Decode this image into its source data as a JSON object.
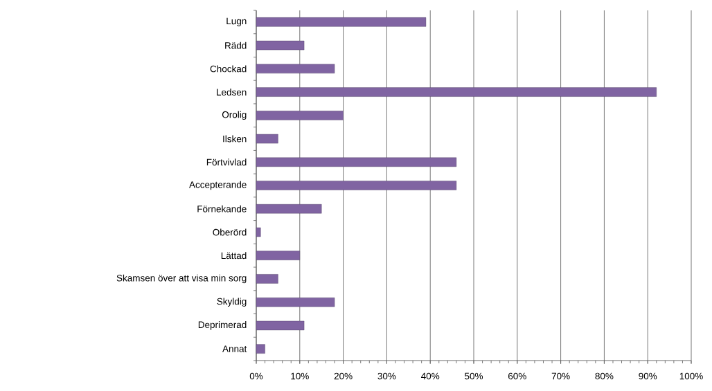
{
  "chart_data": {
    "type": "bar",
    "orientation": "horizontal",
    "categories": [
      "Lugn",
      "Rädd",
      "Chockad",
      "Ledsen",
      "Orolig",
      "Ilsken",
      "Förtvivlad",
      "Accepterande",
      "Förnekande",
      "Oberörd",
      "Lättad",
      "Skamsen över att visa min sorg",
      "Skyldig",
      "Deprimerad",
      "Annat"
    ],
    "values": [
      39,
      11,
      18,
      92,
      20,
      5,
      46,
      46,
      15,
      1,
      10,
      5,
      18,
      11,
      2
    ],
    "color": "#8064a2",
    "xlim": [
      0,
      100
    ],
    "xticks": [
      {
        "value": 0,
        "label": "0%"
      },
      {
        "value": 10,
        "label": "10%"
      },
      {
        "value": 20,
        "label": "20%"
      },
      {
        "value": 30,
        "label": "30%"
      },
      {
        "value": 40,
        "label": "40%"
      },
      {
        "value": 50,
        "label": "50%"
      },
      {
        "value": 60,
        "label": "60%"
      },
      {
        "value": 70,
        "label": "70%"
      },
      {
        "value": 80,
        "label": "80%"
      },
      {
        "value": 90,
        "label": "90%"
      },
      {
        "value": 100,
        "label": "100%"
      }
    ],
    "grid": "x"
  }
}
